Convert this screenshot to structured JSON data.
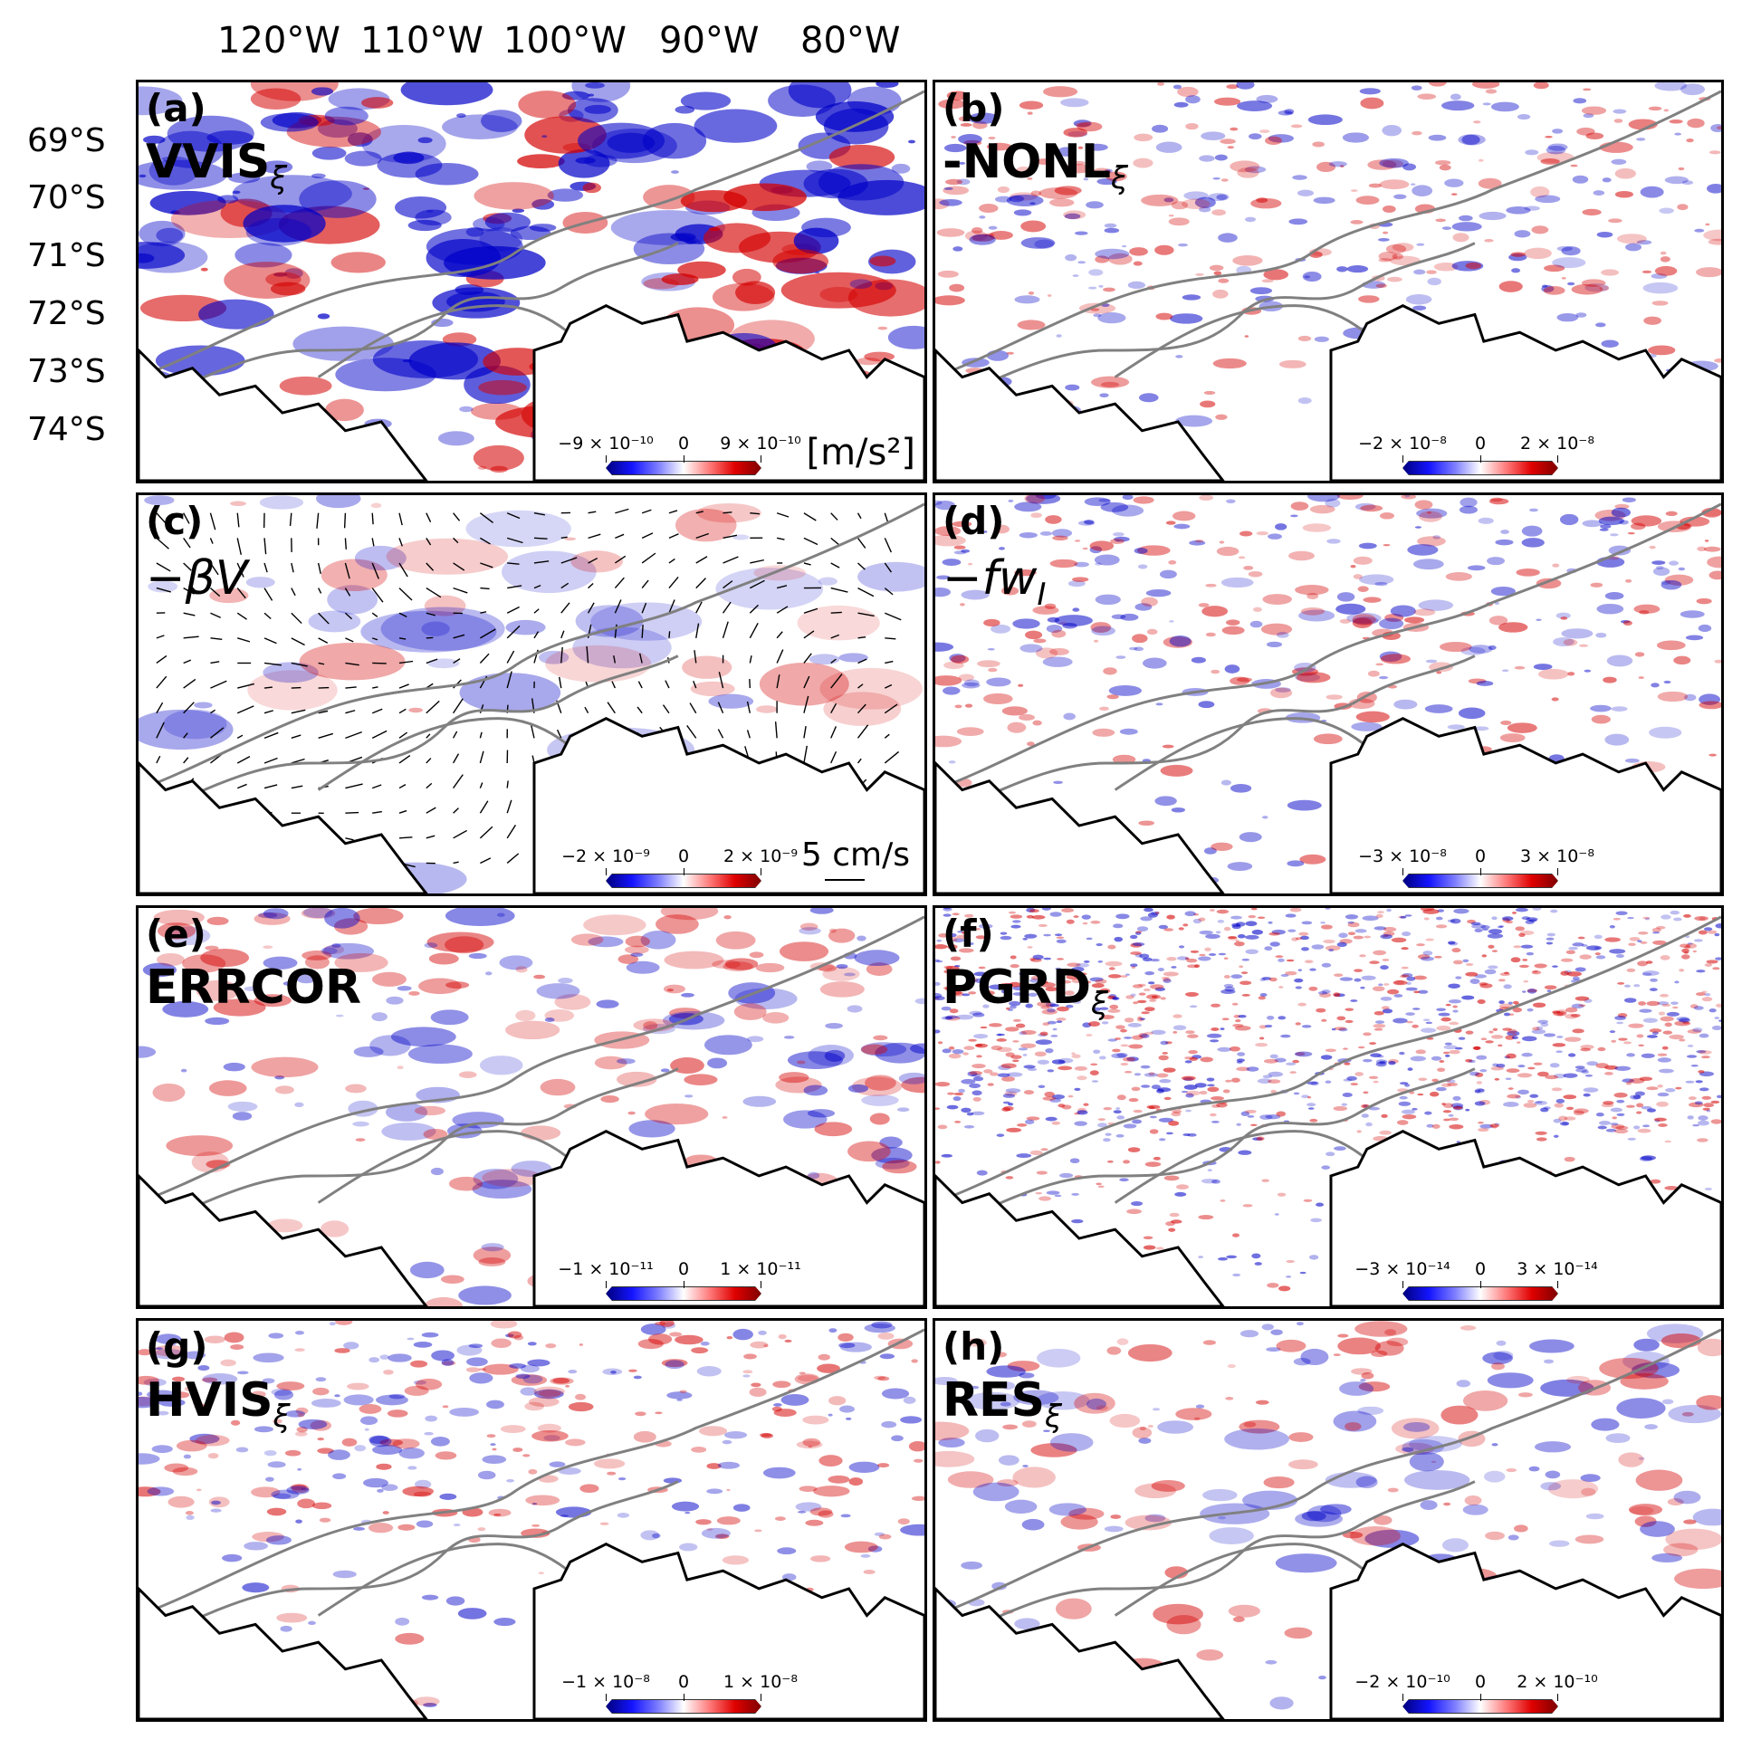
{
  "axes": {
    "longitude_labels": [
      "120°W",
      "110°W",
      "100°W",
      "90°W",
      "80°W"
    ],
    "latitude_labels": [
      "69°S",
      "70°S",
      "71°S",
      "72°S",
      "73°S",
      "74°S"
    ]
  },
  "colors": {
    "negative": "#0000c8",
    "positive": "#d40000",
    "coast": "#000000",
    "contour": "#808080"
  },
  "panels": [
    {
      "id": "a",
      "letter": "(a)",
      "name": "VVIS",
      "sub": "ξ",
      "style": "bold",
      "cbar": {
        "neg": "−9 × 10⁻¹⁰",
        "zero": "0",
        "pos": "9 × 10⁻¹⁰"
      },
      "unit": "[m/s²]",
      "pattern": "strong"
    },
    {
      "id": "b",
      "letter": "(b)",
      "name": "-NONL",
      "sub": "ξ",
      "style": "bold",
      "cbar": {
        "neg": "−2 × 10⁻⁸",
        "zero": "0",
        "pos": "2 × 10⁻⁸"
      },
      "pattern": "fine"
    },
    {
      "id": "c",
      "letter": "(c)",
      "name": "−βV",
      "sub": "",
      "style": "italic",
      "cbar": {
        "neg": "−2 × 10⁻⁹",
        "zero": "0",
        "pos": "2 × 10⁻⁹"
      },
      "scale": "5  cm/s",
      "pattern": "smooth"
    },
    {
      "id": "d",
      "letter": "(d)",
      "name": "−fw",
      "sub": "I",
      "style": "italic",
      "cbar": {
        "neg": "−3 × 10⁻⁸",
        "zero": "0",
        "pos": "3 × 10⁻⁸"
      },
      "pattern": "fine"
    },
    {
      "id": "e",
      "letter": "(e)",
      "name": "ERRCOR",
      "sub": "",
      "style": "bold",
      "cbar": {
        "neg": "−1 × 10⁻¹¹",
        "zero": "0",
        "pos": "1 × 10⁻¹¹"
      },
      "pattern": "medium"
    },
    {
      "id": "f",
      "letter": "(f)",
      "name": "PGRD",
      "sub": "ξ",
      "style": "bold",
      "cbar": {
        "neg": "−3 × 10⁻¹⁴",
        "zero": "0",
        "pos": "3 × 10⁻¹⁴"
      },
      "pattern": "noise"
    },
    {
      "id": "g",
      "letter": "(g)",
      "name": "HVIS",
      "sub": "ξ",
      "style": "bold",
      "cbar": {
        "neg": "−1 × 10⁻⁸",
        "zero": "0",
        "pos": "1 × 10⁻⁸"
      },
      "pattern": "fine"
    },
    {
      "id": "h",
      "letter": "(h)",
      "name": "RES",
      "sub": "ξ",
      "style": "bold",
      "cbar": {
        "neg": "−2 × 10⁻¹⁰",
        "zero": "0",
        "pos": "2 × 10⁻¹⁰"
      },
      "pattern": "medium"
    }
  ]
}
